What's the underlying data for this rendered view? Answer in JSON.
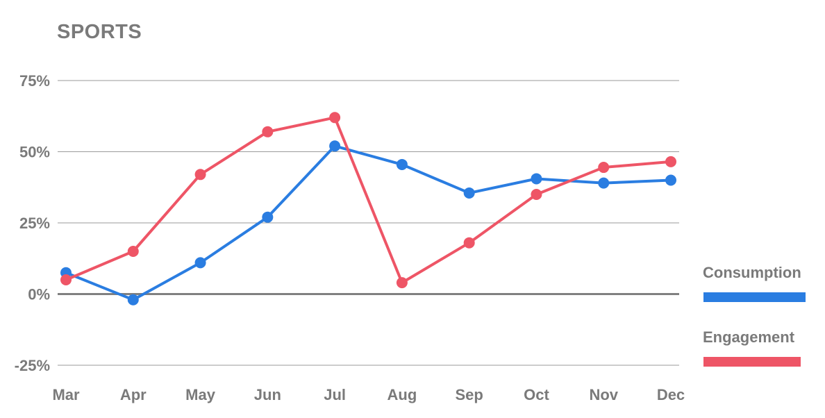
{
  "chart_data": {
    "type": "line",
    "title": "SPORTS",
    "categories": [
      "Mar",
      "Apr",
      "May",
      "Jun",
      "Jul",
      "Aug",
      "Sep",
      "Oct",
      "Nov",
      "Dec"
    ],
    "ylim": [
      -25,
      75
    ],
    "yticks": [
      75,
      50,
      25,
      0,
      -25
    ],
    "ytick_labels": [
      "75%",
      "50%",
      "25%",
      "0%",
      "-25%"
    ],
    "grid": true,
    "legend_position": "right",
    "series": [
      {
        "name": "Consumption",
        "color": "#2a7de1",
        "values": [
          7.5,
          -2,
          11,
          27,
          52,
          45.5,
          35.5,
          40.5,
          39,
          40
        ]
      },
      {
        "name": "Engagement",
        "color": "#ee5566",
        "values": [
          5,
          15,
          42,
          57,
          62,
          4,
          18,
          35,
          44.5,
          46.5
        ]
      }
    ]
  }
}
